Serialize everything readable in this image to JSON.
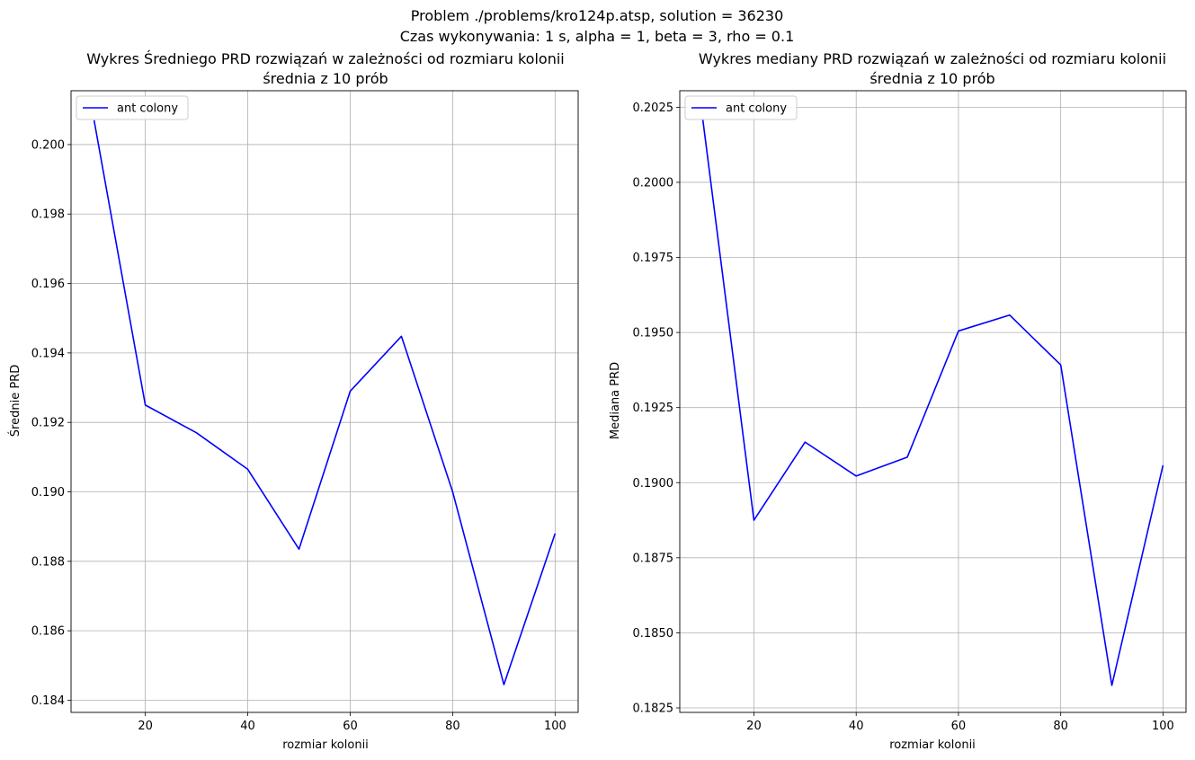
{
  "figure": {
    "suptitle_line1": "Problem ./problems/kro124p.atsp, solution = 36230",
    "suptitle_line2": "Czas wykonywania: 1 s, alpha = 1, beta = 3, rho = 0.1"
  },
  "chart_data": [
    {
      "type": "line",
      "title_line1": "Wykres Średniego PRD rozwiązań w zależności od rozmiaru kolonii",
      "title_line2": "średnia z 10 prób",
      "xlabel": "rozmiar kolonii",
      "ylabel": "Średnie PRD",
      "x": [
        10,
        20,
        30,
        40,
        50,
        60,
        70,
        80,
        90,
        100
      ],
      "series": [
        {
          "name": "ant colony",
          "color": "#0000ff",
          "values": [
            0.2007,
            0.1925,
            0.1917,
            0.19065,
            0.18835,
            0.1929,
            0.19448,
            0.19,
            0.18445,
            0.1888
          ]
        }
      ],
      "xlim": [
        5.5,
        104.5
      ],
      "ylim": [
        0.18365,
        0.20155
      ],
      "xticks": [
        20,
        40,
        60,
        80,
        100
      ],
      "yticks": [
        0.184,
        0.186,
        0.188,
        0.19,
        0.192,
        0.194,
        0.196,
        0.198,
        0.2
      ],
      "ytick_labels": [
        "0.184",
        "0.186",
        "0.188",
        "0.190",
        "0.192",
        "0.194",
        "0.196",
        "0.198",
        "0.200"
      ],
      "grid": true,
      "legend": "upper left"
    },
    {
      "type": "line",
      "title_line1": "Wykres mediany PRD rozwiązań w zależności od rozmiaru kolonii",
      "title_line2": "średnia z 10 prób",
      "xlabel": "rozmiar kolonii",
      "ylabel": "Mediana PRD",
      "x": [
        10,
        20,
        30,
        40,
        50,
        60,
        70,
        80,
        90,
        100
      ],
      "series": [
        {
          "name": "ant colony",
          "color": "#0000ff",
          "values": [
            0.2021,
            0.18875,
            0.19135,
            0.19022,
            0.19085,
            0.19505,
            0.19558,
            0.19392,
            0.18325,
            0.19058
          ]
        }
      ],
      "xlim": [
        5.5,
        104.5
      ],
      "ylim": [
        0.18235,
        0.20305
      ],
      "xticks": [
        20,
        40,
        60,
        80,
        100
      ],
      "yticks": [
        0.1825,
        0.185,
        0.1875,
        0.19,
        0.1925,
        0.195,
        0.1975,
        0.2,
        0.2025
      ],
      "ytick_labels": [
        "0.1825",
        "0.1850",
        "0.1875",
        "0.1900",
        "0.1925",
        "0.1950",
        "0.1975",
        "0.2000",
        "0.2025"
      ],
      "grid": true,
      "legend": "upper left"
    }
  ]
}
